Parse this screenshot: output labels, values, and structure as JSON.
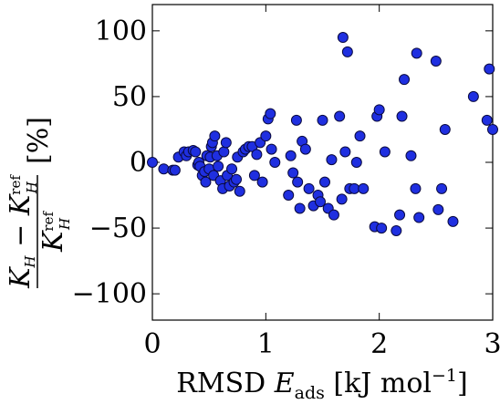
{
  "chart_data": {
    "type": "scatter",
    "title": "",
    "xlabel": {
      "prefix": "RMSD ",
      "var": "E",
      "var_sub": "ads",
      "units_pre": " [kJ mol",
      "units_sup": "−1",
      "units_post": "]"
    },
    "ylabel": {
      "num_var": "K",
      "num_sub": "H",
      "num_minus": " − ",
      "num_var2": "K",
      "num_sub2": "H",
      "num_sup2": "ref",
      "den_var": "K",
      "den_sub": "H",
      "den_sup": "ref",
      "units": "[%]"
    },
    "xlim": [
      0,
      3
    ],
    "ylim": [
      -120,
      120
    ],
    "xticks": [
      0,
      1,
      2,
      3
    ],
    "xtick_labels": [
      "0",
      "1",
      "2",
      "3"
    ],
    "yticks": [
      100,
      50,
      0,
      -50,
      -100
    ],
    "ytick_labels": [
      "100",
      "50",
      "0",
      "−50",
      "−100"
    ],
    "grid": false,
    "legend": "none",
    "marker_color": "#1f2fe0",
    "marker_edge": "#0a0a40",
    "points": [
      [
        0.0,
        0
      ],
      [
        0.1,
        -5
      ],
      [
        0.18,
        -6
      ],
      [
        0.2,
        -6
      ],
      [
        0.23,
        4
      ],
      [
        0.28,
        8
      ],
      [
        0.3,
        5
      ],
      [
        0.32,
        8
      ],
      [
        0.36,
        9
      ],
      [
        0.38,
        8
      ],
      [
        0.4,
        -2
      ],
      [
        0.41,
        0
      ],
      [
        0.42,
        -3
      ],
      [
        0.44,
        -10
      ],
      [
        0.46,
        -7
      ],
      [
        0.47,
        -15
      ],
      [
        0.48,
        5
      ],
      [
        0.5,
        -5
      ],
      [
        0.51,
        4
      ],
      [
        0.52,
        12
      ],
      [
        0.53,
        15
      ],
      [
        0.54,
        -10
      ],
      [
        0.55,
        20
      ],
      [
        0.57,
        5
      ],
      [
        0.58,
        -3
      ],
      [
        0.6,
        -14
      ],
      [
        0.62,
        -20
      ],
      [
        0.63,
        8
      ],
      [
        0.65,
        15
      ],
      [
        0.66,
        -10
      ],
      [
        0.68,
        -18
      ],
      [
        0.7,
        -5
      ],
      [
        0.72,
        -15
      ],
      [
        0.74,
        -13
      ],
      [
        0.75,
        4
      ],
      [
        0.77,
        -22
      ],
      [
        0.8,
        8
      ],
      [
        0.82,
        10
      ],
      [
        0.85,
        12
      ],
      [
        0.88,
        12
      ],
      [
        0.9,
        -10
      ],
      [
        0.92,
        6
      ],
      [
        0.95,
        15
      ],
      [
        0.97,
        -15
      ],
      [
        1.0,
        20
      ],
      [
        1.02,
        33
      ],
      [
        1.04,
        37
      ],
      [
        1.05,
        10
      ],
      [
        1.08,
        0
      ],
      [
        1.2,
        -25
      ],
      [
        1.22,
        5
      ],
      [
        1.24,
        -8
      ],
      [
        1.27,
        32
      ],
      [
        1.28,
        -15
      ],
      [
        1.3,
        -35
      ],
      [
        1.32,
        16
      ],
      [
        1.35,
        10
      ],
      [
        1.38,
        -20
      ],
      [
        1.42,
        -33
      ],
      [
        1.46,
        -25
      ],
      [
        1.48,
        -30
      ],
      [
        1.5,
        32
      ],
      [
        1.52,
        -15
      ],
      [
        1.55,
        -35
      ],
      [
        1.58,
        2
      ],
      [
        1.6,
        -40
      ],
      [
        1.65,
        35
      ],
      [
        1.67,
        -28
      ],
      [
        1.7,
        8
      ],
      [
        1.74,
        -20
      ],
      [
        1.78,
        -20
      ],
      [
        1.8,
        0
      ],
      [
        1.83,
        20
      ],
      [
        1.86,
        -20
      ],
      [
        1.68,
        95
      ],
      [
        1.72,
        84
      ],
      [
        1.96,
        -49
      ],
      [
        1.98,
        35
      ],
      [
        2.0,
        40
      ],
      [
        2.02,
        -50
      ],
      [
        2.05,
        8
      ],
      [
        2.15,
        -52
      ],
      [
        2.18,
        -40
      ],
      [
        2.2,
        35
      ],
      [
        2.22,
        63
      ],
      [
        2.28,
        5
      ],
      [
        2.32,
        -20
      ],
      [
        2.33,
        83
      ],
      [
        2.35,
        -42
      ],
      [
        2.5,
        77
      ],
      [
        2.52,
        -36
      ],
      [
        2.55,
        -20
      ],
      [
        2.58,
        25
      ],
      [
        2.65,
        -45
      ],
      [
        2.83,
        50
      ],
      [
        2.95,
        32
      ],
      [
        2.97,
        71
      ],
      [
        3.0,
        25
      ]
    ]
  }
}
